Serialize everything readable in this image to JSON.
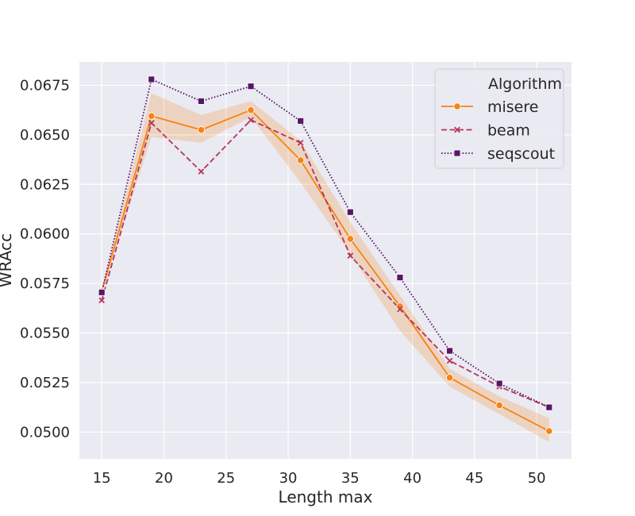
{
  "chart_data": {
    "type": "line",
    "xlabel": "Length max",
    "ylabel": "WRAcc",
    "xlim": [
      13.2,
      52.8
    ],
    "ylim": [
      0.04865,
      0.06868
    ],
    "xticks": [
      15,
      20,
      25,
      30,
      35,
      40,
      45,
      50
    ],
    "xtick_labels": [
      "15",
      "20",
      "25",
      "30",
      "35",
      "40",
      "45",
      "50"
    ],
    "yticks": [
      0.05,
      0.0525,
      0.055,
      0.0575,
      0.06,
      0.0625,
      0.065,
      0.0675
    ],
    "ytick_labels": [
      "0.0500",
      "0.0525",
      "0.0550",
      "0.0575",
      "0.0600",
      "0.0625",
      "0.0650",
      "0.0675"
    ],
    "grid": true,
    "legend": {
      "title": "Algorithm",
      "placement": "top-right"
    },
    "x": [
      15,
      19,
      23,
      27,
      31,
      35,
      39,
      43,
      47,
      51
    ],
    "series": [
      {
        "name": "misere",
        "color": "#f78311",
        "dash": "solid",
        "marker": "circle",
        "values": [
          0.0571,
          0.06595,
          0.06525,
          0.06625,
          0.06372,
          0.05975,
          0.05635,
          0.05275,
          0.05135,
          0.05005
        ],
        "band_low": [
          0.057,
          0.0649,
          0.0646,
          0.0659,
          0.0626,
          0.059,
          0.0551,
          0.0523,
          0.0509,
          0.0495
        ],
        "band_high": [
          0.0572,
          0.0671,
          0.066,
          0.0667,
          0.0647,
          0.0606,
          0.0569,
          0.0532,
          0.0518,
          0.0507
        ]
      },
      {
        "name": "beam",
        "color": "#b5345a",
        "dash": "dashed",
        "marker": "x",
        "values": [
          0.05665,
          0.0656,
          0.06315,
          0.06575,
          0.0646,
          0.0589,
          0.0562,
          0.0536,
          0.0523,
          0.05125
        ]
      },
      {
        "name": "seqscout",
        "color": "#581666",
        "dash": "dotted",
        "marker": "square",
        "values": [
          0.05705,
          0.0678,
          0.0667,
          0.06745,
          0.0657,
          0.0611,
          0.0578,
          0.0541,
          0.05245,
          0.05125
        ]
      }
    ]
  }
}
